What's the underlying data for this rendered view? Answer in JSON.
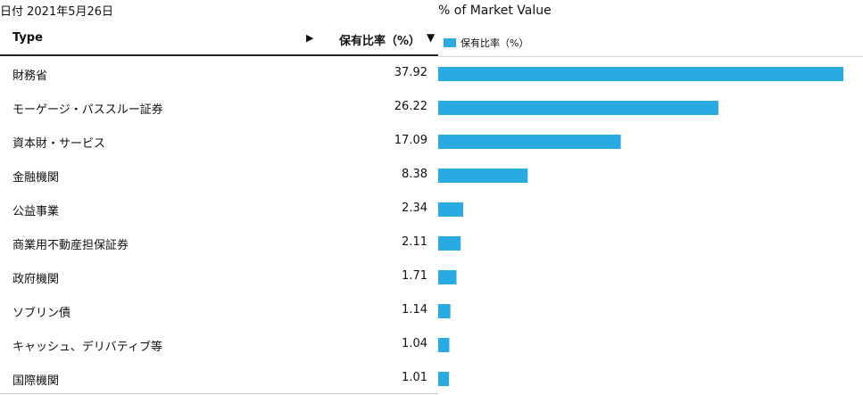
{
  "header": {
    "date": "日付 2021年5月26日",
    "col_type": "Type",
    "col_pct": "保有比率（%）",
    "arrow_right": "▶",
    "arrow_down": "▼"
  },
  "chart_data": {
    "type": "bar",
    "orientation": "horizontal",
    "title": "% of Market Value",
    "legend": "保有比率（%）",
    "legend_position": "top-left",
    "color": "#29abe2",
    "xlim": [
      0,
      38
    ],
    "grid": false,
    "categories": [
      "財務省",
      "モーゲージ・パススルー証券",
      "資本財・サービス",
      "金融機関",
      "公益事業",
      "商業用不動産担保証券",
      "政府機関",
      "ソブリン債",
      "キャッシュ、デリバティブ等",
      "国際機関"
    ],
    "values": [
      37.92,
      26.22,
      17.09,
      8.38,
      2.34,
      2.11,
      1.71,
      1.14,
      1.04,
      1.01
    ],
    "value_labels": [
      "37.92",
      "26.22",
      "17.09",
      "8.38",
      "2.34",
      "2.11",
      "1.71",
      "1.14",
      "1.04",
      "1.01"
    ]
  }
}
